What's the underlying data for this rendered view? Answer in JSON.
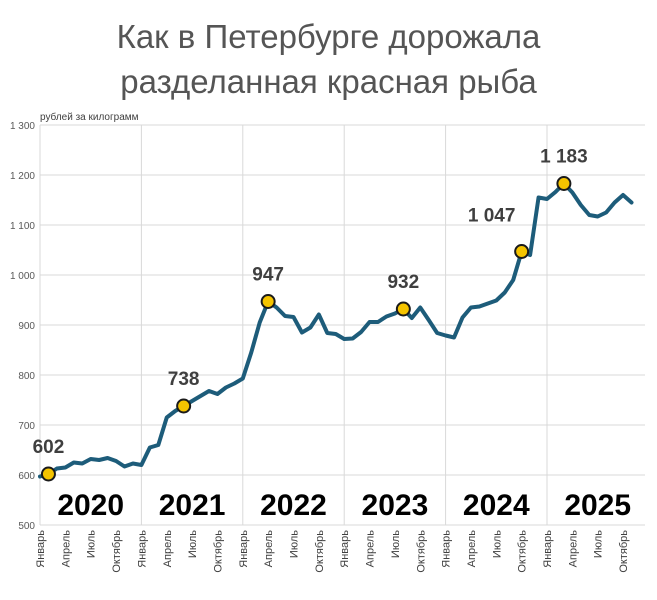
{
  "title_line1": "Как в Петербурге дорожала",
  "title_line2": "разделанная красная рыба",
  "colors": {
    "line": "#1d5c7a",
    "marker": "#f5c400",
    "grid": "#d9d9d9"
  },
  "chart_data": {
    "type": "line",
    "title": "Как в Петербурге дорожала разделанная красная рыба",
    "ylabel": "рублей за килограмм",
    "ylim": [
      500,
      1300
    ],
    "yticks": [
      500,
      600,
      700,
      800,
      900,
      1000,
      1100,
      1200,
      1300
    ],
    "ytick_labels": [
      "500",
      "600",
      "700",
      "800",
      "900",
      "1 000",
      "1 100",
      "1 200",
      "1 300"
    ],
    "x_tick_labels": [
      "Январь",
      "Апрель",
      "Июль",
      "Октябрь"
    ],
    "years": [
      "2020",
      "2021",
      "2022",
      "2023",
      "2024",
      "2025"
    ],
    "series": [
      {
        "name": "разделанная красная рыба",
        "values": [
          597,
          602,
          613,
          615,
          625,
          623,
          632,
          630,
          634,
          628,
          617,
          623,
          620,
          655,
          660,
          715,
          728,
          738,
          748,
          758,
          768,
          762,
          775,
          783,
          793,
          845,
          905,
          947,
          935,
          918,
          916,
          885,
          895,
          921,
          884,
          882,
          872,
          873,
          886,
          906,
          906,
          917,
          923,
          932,
          914,
          935,
          910,
          884,
          879,
          875,
          915,
          935,
          937,
          943,
          949,
          965,
          990,
          1047,
          1040,
          1155,
          1152,
          1166,
          1183,
          1165,
          1140,
          1120,
          1117,
          1125,
          1145,
          1160,
          1145
        ]
      }
    ],
    "highlights": [
      {
        "index": 1,
        "label": "602"
      },
      {
        "index": 17,
        "label": "738"
      },
      {
        "index": 27,
        "label": "947"
      },
      {
        "index": 43,
        "label": "932"
      },
      {
        "index": 57,
        "label": "1 047"
      },
      {
        "index": 62,
        "label": "1 183"
      }
    ]
  }
}
